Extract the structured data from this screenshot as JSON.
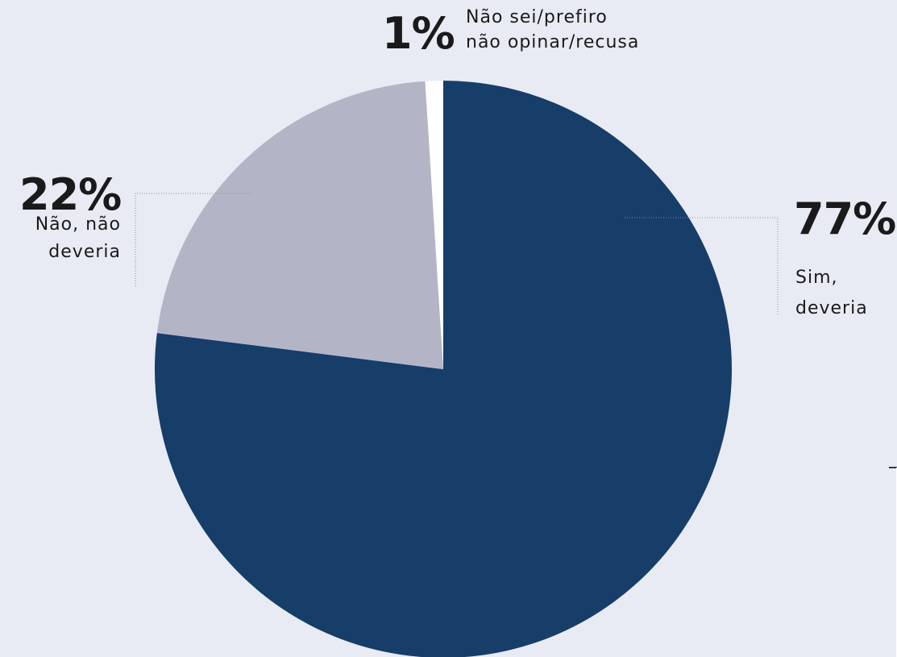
{
  "chart_data": {
    "type": "pie",
    "categories": [
      "Sim, deveria",
      "Não, não deveria",
      "Não sei/prefiro não opinar/recusa"
    ],
    "values": [
      77,
      22,
      1
    ],
    "value_labels": [
      "77%",
      "22%",
      "1%"
    ],
    "colors": [
      "#173d69",
      "#b3b5c7",
      "#ffffff"
    ]
  }
}
